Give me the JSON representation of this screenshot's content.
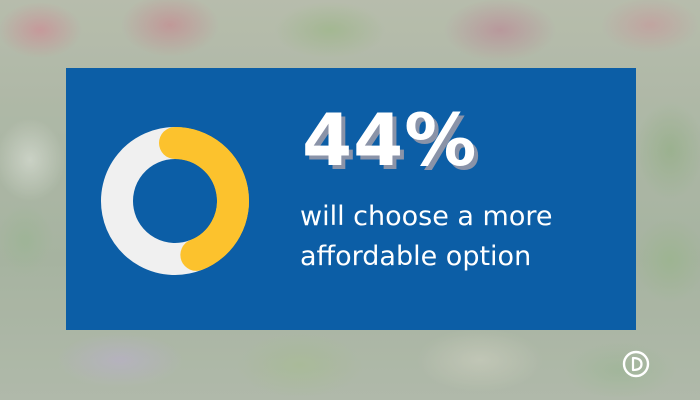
{
  "chart_data": {
    "type": "pie",
    "variant": "donut",
    "categories": [
      "will choose a more affordable option",
      ""
    ],
    "values": [
      44,
      56
    ],
    "value_unit": "%",
    "colors": [
      "#fcc22d",
      "#f0f0f0"
    ],
    "hole_color": "#0c5ea6",
    "start_angle_deg": 0
  },
  "stat": {
    "value": "44%",
    "caption_line1": "will choose a more",
    "caption_line2": "affordable option"
  },
  "colors": {
    "card": "#0c5ea6",
    "text": "#ffffff",
    "shadow": "#8a93a8",
    "accent_top": "#0f70a8",
    "accent_bottom": "#6ed04e"
  },
  "logo": {
    "icon": "brand-d-icon"
  }
}
